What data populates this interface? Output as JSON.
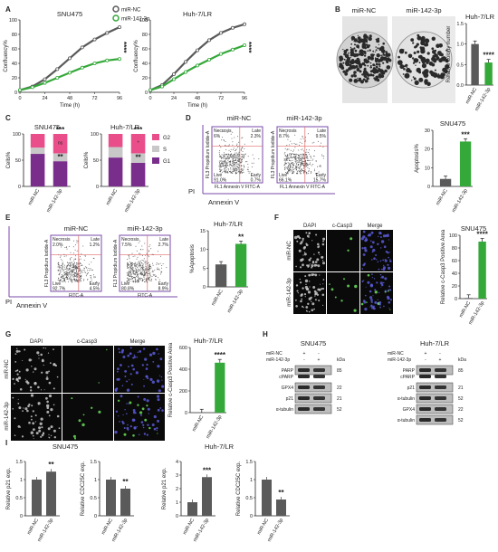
{
  "panels": {
    "A": "A",
    "B": "B",
    "C": "C",
    "D": "D",
    "E": "E",
    "F": "F",
    "G": "G",
    "H": "H",
    "I": "I"
  },
  "legend": {
    "nc": "miR-NC",
    "mir": "miR-142-3p"
  },
  "colors": {
    "nc": "#5a5a5a",
    "mir": "#35a83a",
    "light": "#9a9a9a",
    "g1": "#7a2e8c",
    "s": "#c8c8c8",
    "g2": "#e94d8a",
    "frame": "#7a4aa8",
    "gate": "#e06a6a"
  },
  "cells": {
    "snu": "SNU475",
    "huh": "Huh-7/LR"
  },
  "A": {
    "ylabel": "Confluency%",
    "xlabel": "Time (h)",
    "yticks": [
      "0",
      "20",
      "40",
      "60",
      "80",
      "100"
    ],
    "xticks": [
      "0",
      "24",
      "48",
      "72",
      "96"
    ],
    "stars": "****"
  },
  "B": {
    "nc": "miR-NC",
    "mir": "miR-142-3p",
    "title": "Huh-7/LR",
    "ylabel": "Relative colony number",
    "yticks": [
      "0.0",
      "0.5",
      "1.0",
      "1.5"
    ],
    "stars": "****"
  },
  "C": {
    "ylabel": "Cells%",
    "yticks": [
      "0",
      "50",
      "100"
    ],
    "legend": [
      "G2",
      "S",
      "G1"
    ],
    "ns": "ns",
    "s3": "***",
    "s2": "**",
    "s1": "*"
  },
  "flow": {
    "nc": "miR-NC",
    "mir": "miR-142-3p",
    "q_necrosis": "Necrosis",
    "q_late": "Late",
    "q_live": "Live",
    "q_early": "Early",
    "D_vals": {
      "nc": [
        "6%",
        "2.3%",
        "91.0%",
        "0.7%"
      ],
      "mir": [
        "8.7%",
        "9.5%",
        "66.1%",
        "15.7%"
      ]
    },
    "E_vals": {
      "nc": [
        "2.0%",
        "1.2%",
        "92.7%",
        "4.5%"
      ],
      "mir": [
        "7.5%",
        "2.7%",
        "80.8%",
        "8.9%"
      ]
    },
    "ylab_axis": "FL3 Propidium Iodide-A",
    "xlab_axis": "FL1 Annexin V FITC-A",
    "xlab_e": "FITC-A",
    "pi": "PI",
    "annexin": "Annexin V",
    "D_side_title": "SNU475",
    "D_ylabel": "Apoptosis%",
    "D_stars": "***",
    "E_side_title": "Huh-7/LR",
    "E_ylabel": "%Apoptosis",
    "E_stars": "**"
  },
  "if": {
    "dapi": "DAPI",
    "casp": "c-Casp3",
    "merge": "Merge",
    "nc": "miR-NC",
    "mir": "miR-142-3p",
    "F_title": "SNU475",
    "G_title": "Huh-7/LR",
    "ylabel": "Relative c-Casp3 Positive Area",
    "stars": "****"
  },
  "H": {
    "snu": "SNU475",
    "huh": "Huh-7/LR",
    "kda": "kDa",
    "row_nc": "miR-NC",
    "row_mir": "miR-142-3p",
    "signs_nc": [
      "+",
      "-"
    ],
    "signs_mir": [
      "-",
      "+"
    ],
    "snu_bands": [
      "PARP",
      "cPARP",
      "GPX4",
      "p21",
      "α-tubulin"
    ],
    "snu_kda": [
      "85",
      "",
      "22",
      "21",
      "52"
    ],
    "huh_bands": [
      "PARP",
      "cPARP",
      "p21",
      "α-tubulin",
      "GPX4",
      "α-tubulin"
    ],
    "huh_kda": [
      "85",
      "",
      "21",
      "52",
      "22",
      "52"
    ]
  },
  "I": {
    "snu": "SNU475",
    "huh": "Huh-7/LR",
    "p21": "Relative p21 exp.",
    "cdc": "Relative CDC25C exp.",
    "s1": "**",
    "s2": "**",
    "s3": "***",
    "s4": "**"
  },
  "chart_data": [
    {
      "type": "line",
      "panel": "A",
      "title": "SNU475",
      "xlabel": "Time (h)",
      "ylabel": "Confluency%",
      "xlim": [
        0,
        96
      ],
      "ylim": [
        0,
        100
      ],
      "series": [
        {
          "name": "miR-NC",
          "x": [
            0,
            12,
            24,
            36,
            48,
            60,
            72,
            84,
            96
          ],
          "values": [
            3,
            8,
            18,
            32,
            47,
            62,
            73,
            82,
            90
          ]
        },
        {
          "name": "miR-142-3p",
          "x": [
            0,
            12,
            24,
            36,
            48,
            60,
            72,
            84,
            96
          ],
          "values": [
            3,
            7,
            13,
            20,
            27,
            34,
            40,
            44,
            46
          ]
        }
      ]
    },
    {
      "type": "line",
      "panel": "A",
      "title": "Huh-7/LR",
      "xlabel": "Time (h)",
      "ylabel": "Confluency%",
      "xlim": [
        0,
        96
      ],
      "ylim": [
        0,
        100
      ],
      "series": [
        {
          "name": "miR-NC",
          "x": [
            0,
            12,
            24,
            36,
            48,
            60,
            72,
            84,
            96
          ],
          "values": [
            3,
            10,
            25,
            42,
            58,
            72,
            82,
            89,
            94
          ]
        },
        {
          "name": "miR-142-3p",
          "x": [
            0,
            12,
            24,
            36,
            48,
            60,
            72,
            84,
            96
          ],
          "values": [
            3,
            8,
            18,
            28,
            37,
            45,
            53,
            59,
            65
          ]
        }
      ]
    },
    {
      "type": "bar",
      "panel": "B",
      "title": "Huh-7/LR",
      "categories": [
        "miR-NC",
        "miR-142-3p"
      ],
      "values": [
        1.0,
        0.55
      ],
      "ylim": [
        0,
        1.5
      ],
      "ylabel": "Relative colony number"
    },
    {
      "type": "bar",
      "panel": "C",
      "title": "SNU475",
      "stacked": true,
      "categories": [
        "miR-NC",
        "miR-142-3p"
      ],
      "ylim": [
        0,
        100
      ],
      "series": [
        {
          "name": "G1",
          "values": [
            62,
            48
          ]
        },
        {
          "name": "S",
          "values": [
            12,
            15
          ]
        },
        {
          "name": "G2",
          "values": [
            26,
            37
          ]
        }
      ]
    },
    {
      "type": "bar",
      "panel": "C",
      "title": "Huh-7/LR",
      "stacked": true,
      "categories": [
        "miR-NC",
        "miR-142-3p"
      ],
      "ylim": [
        0,
        100
      ],
      "series": [
        {
          "name": "G1",
          "values": [
            55,
            45
          ]
        },
        {
          "name": "S",
          "values": [
            20,
            18
          ]
        },
        {
          "name": "G2",
          "values": [
            25,
            37
          ]
        }
      ]
    },
    {
      "type": "bar",
      "panel": "D",
      "title": "SNU475",
      "categories": [
        "miR-NC",
        "miR-142-3p"
      ],
      "values": [
        4,
        24
      ],
      "ylim": [
        0,
        30
      ],
      "yticks": [
        0,
        10,
        20,
        30
      ],
      "ylabel": "Apoptosis%"
    },
    {
      "type": "bar",
      "panel": "E",
      "title": "Huh-7/LR",
      "categories": [
        "miR-NC",
        "miR-142-3p"
      ],
      "values": [
        6,
        11.5
      ],
      "ylim": [
        0,
        15
      ],
      "yticks": [
        0,
        5,
        10,
        15
      ],
      "ylabel": "%Apoptosis"
    },
    {
      "type": "bar",
      "panel": "F",
      "title": "SNU475",
      "categories": [
        "miR-NC",
        "miR-142-3p"
      ],
      "values": [
        1,
        90
      ],
      "yticks": [
        0,
        5,
        10,
        15,
        20,
        40,
        60,
        80,
        100
      ],
      "ylabel": "Relative c-Casp3 Positive Area"
    },
    {
      "type": "bar",
      "panel": "G",
      "title": "Huh-7/LR",
      "categories": [
        "miR-NC",
        "miR-142-3p"
      ],
      "values": [
        1,
        460
      ],
      "yticks": [
        0,
        5,
        10,
        200,
        400,
        600
      ],
      "ylabel": "Relative c-Casp3 Positive Area"
    },
    {
      "type": "bar",
      "panel": "I",
      "title": "SNU475",
      "categories": [
        "miR-NC",
        "miR-142-3p"
      ],
      "values": [
        1.0,
        1.22
      ],
      "ylim": [
        0,
        1.5
      ],
      "ylabel": "Relative p21 exp."
    },
    {
      "type": "bar",
      "panel": "I",
      "title": "SNU475",
      "categories": [
        "miR-NC",
        "miR-142-3p"
      ],
      "values": [
        1.0,
        0.75
      ],
      "ylim": [
        0,
        1.5
      ],
      "ylabel": "Relative CDC25C exp."
    },
    {
      "type": "bar",
      "panel": "I",
      "title": "Huh-7/LR",
      "categories": [
        "miR-NC",
        "miR-142-3p"
      ],
      "values": [
        1.0,
        2.85
      ],
      "ylim": [
        0,
        4
      ],
      "ylabel": "Relative p21 exp."
    },
    {
      "type": "bar",
      "panel": "I",
      "title": "Huh-7/LR",
      "categories": [
        "miR-NC",
        "miR-142-3p"
      ],
      "values": [
        1.0,
        0.45
      ],
      "ylim": [
        0,
        1.5
      ],
      "ylabel": "Relative CDC25C exp."
    }
  ]
}
